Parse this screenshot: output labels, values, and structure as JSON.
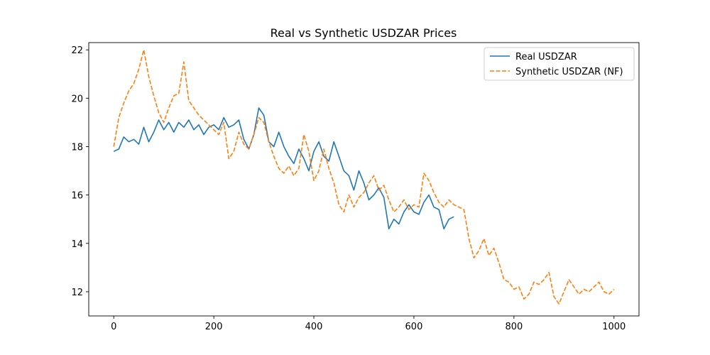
{
  "chart_data": {
    "type": "line",
    "title": "Real vs Synthetic USDZAR Prices",
    "xlabel": "",
    "ylabel": "",
    "xlim": [
      -50,
      1050
    ],
    "ylim": [
      11,
      22.3
    ],
    "xticks": [
      0,
      200,
      400,
      600,
      800,
      1000
    ],
    "yticks": [
      12,
      14,
      16,
      18,
      20,
      22
    ],
    "legend_position": "top-right",
    "grid": false,
    "series": [
      {
        "name": "Real USDZAR",
        "color": "#1f77b4",
        "dash": "solid",
        "x": [
          0,
          10,
          20,
          30,
          40,
          50,
          60,
          70,
          80,
          90,
          100,
          110,
          120,
          130,
          140,
          150,
          160,
          170,
          180,
          190,
          200,
          210,
          220,
          230,
          240,
          250,
          260,
          270,
          280,
          290,
          300,
          310,
          320,
          330,
          340,
          350,
          360,
          370,
          380,
          390,
          400,
          410,
          420,
          430,
          440,
          450,
          460,
          470,
          480,
          490,
          500,
          510,
          520,
          530,
          540,
          550,
          560,
          570,
          580,
          590,
          600,
          610,
          620,
          630,
          640,
          650,
          660,
          670,
          680
        ],
        "y": [
          17.8,
          17.9,
          18.4,
          18.2,
          18.3,
          18.1,
          18.8,
          18.2,
          18.6,
          19.1,
          18.7,
          19.0,
          18.6,
          19.0,
          18.8,
          19.1,
          18.7,
          18.9,
          18.5,
          18.8,
          18.9,
          18.7,
          19.2,
          18.8,
          18.9,
          19.1,
          18.3,
          17.9,
          18.5,
          19.6,
          19.3,
          18.2,
          18.0,
          18.6,
          18.0,
          17.6,
          17.3,
          17.9,
          17.5,
          17.0,
          17.8,
          18.2,
          17.6,
          17.4,
          18.2,
          17.6,
          17.0,
          16.8,
          16.2,
          17.0,
          16.5,
          15.8,
          16.0,
          16.3,
          15.9,
          14.6,
          15.0,
          14.8,
          15.3,
          15.6,
          15.3,
          15.2,
          15.7,
          16.0,
          15.5,
          15.4,
          14.6,
          15.0,
          15.1
        ]
      },
      {
        "name": "Synthetic USDZAR (NF)",
        "color": "#ff7f0e",
        "dash": "dashed",
        "x": [
          0,
          10,
          20,
          30,
          40,
          50,
          60,
          70,
          80,
          90,
          100,
          110,
          120,
          130,
          140,
          150,
          160,
          170,
          180,
          190,
          200,
          210,
          220,
          230,
          240,
          250,
          260,
          270,
          280,
          290,
          300,
          310,
          320,
          330,
          340,
          350,
          360,
          370,
          380,
          390,
          400,
          410,
          420,
          430,
          440,
          450,
          460,
          470,
          480,
          490,
          500,
          510,
          520,
          530,
          540,
          550,
          560,
          570,
          580,
          590,
          600,
          610,
          620,
          630,
          640,
          650,
          660,
          670,
          680,
          690,
          700,
          710,
          720,
          730,
          740,
          750,
          760,
          770,
          780,
          790,
          800,
          810,
          820,
          830,
          840,
          850,
          860,
          870,
          880,
          890,
          900,
          910,
          920,
          930,
          940,
          950,
          960,
          970,
          980,
          990,
          1000
        ],
        "y": [
          18.0,
          19.2,
          19.8,
          20.3,
          20.6,
          21.2,
          22.0,
          20.9,
          20.1,
          19.4,
          19.0,
          19.6,
          20.1,
          20.2,
          21.5,
          19.9,
          19.6,
          19.3,
          19.1,
          18.9,
          18.7,
          18.5,
          19.0,
          17.5,
          17.8,
          18.6,
          18.1,
          17.9,
          18.5,
          19.2,
          19.0,
          18.2,
          17.6,
          17.1,
          16.9,
          17.2,
          16.8,
          17.1,
          18.5,
          17.8,
          16.6,
          17.0,
          17.9,
          17.1,
          16.5,
          15.6,
          15.3,
          16.0,
          15.5,
          15.9,
          16.1,
          16.5,
          16.8,
          16.2,
          16.4,
          15.8,
          15.3,
          15.5,
          15.8,
          15.4,
          15.6,
          15.5,
          16.9,
          16.6,
          16.1,
          15.7,
          15.5,
          15.8,
          15.6,
          15.5,
          15.4,
          14.2,
          13.4,
          13.7,
          14.2,
          13.5,
          13.8,
          13.2,
          12.5,
          12.4,
          12.1,
          12.2,
          11.7,
          11.9,
          12.4,
          12.3,
          12.5,
          12.8,
          11.8,
          11.5,
          12.0,
          12.5,
          12.2,
          11.9,
          12.1,
          12.0,
          12.2,
          12.4,
          12.0,
          11.9,
          12.1
        ]
      }
    ]
  }
}
